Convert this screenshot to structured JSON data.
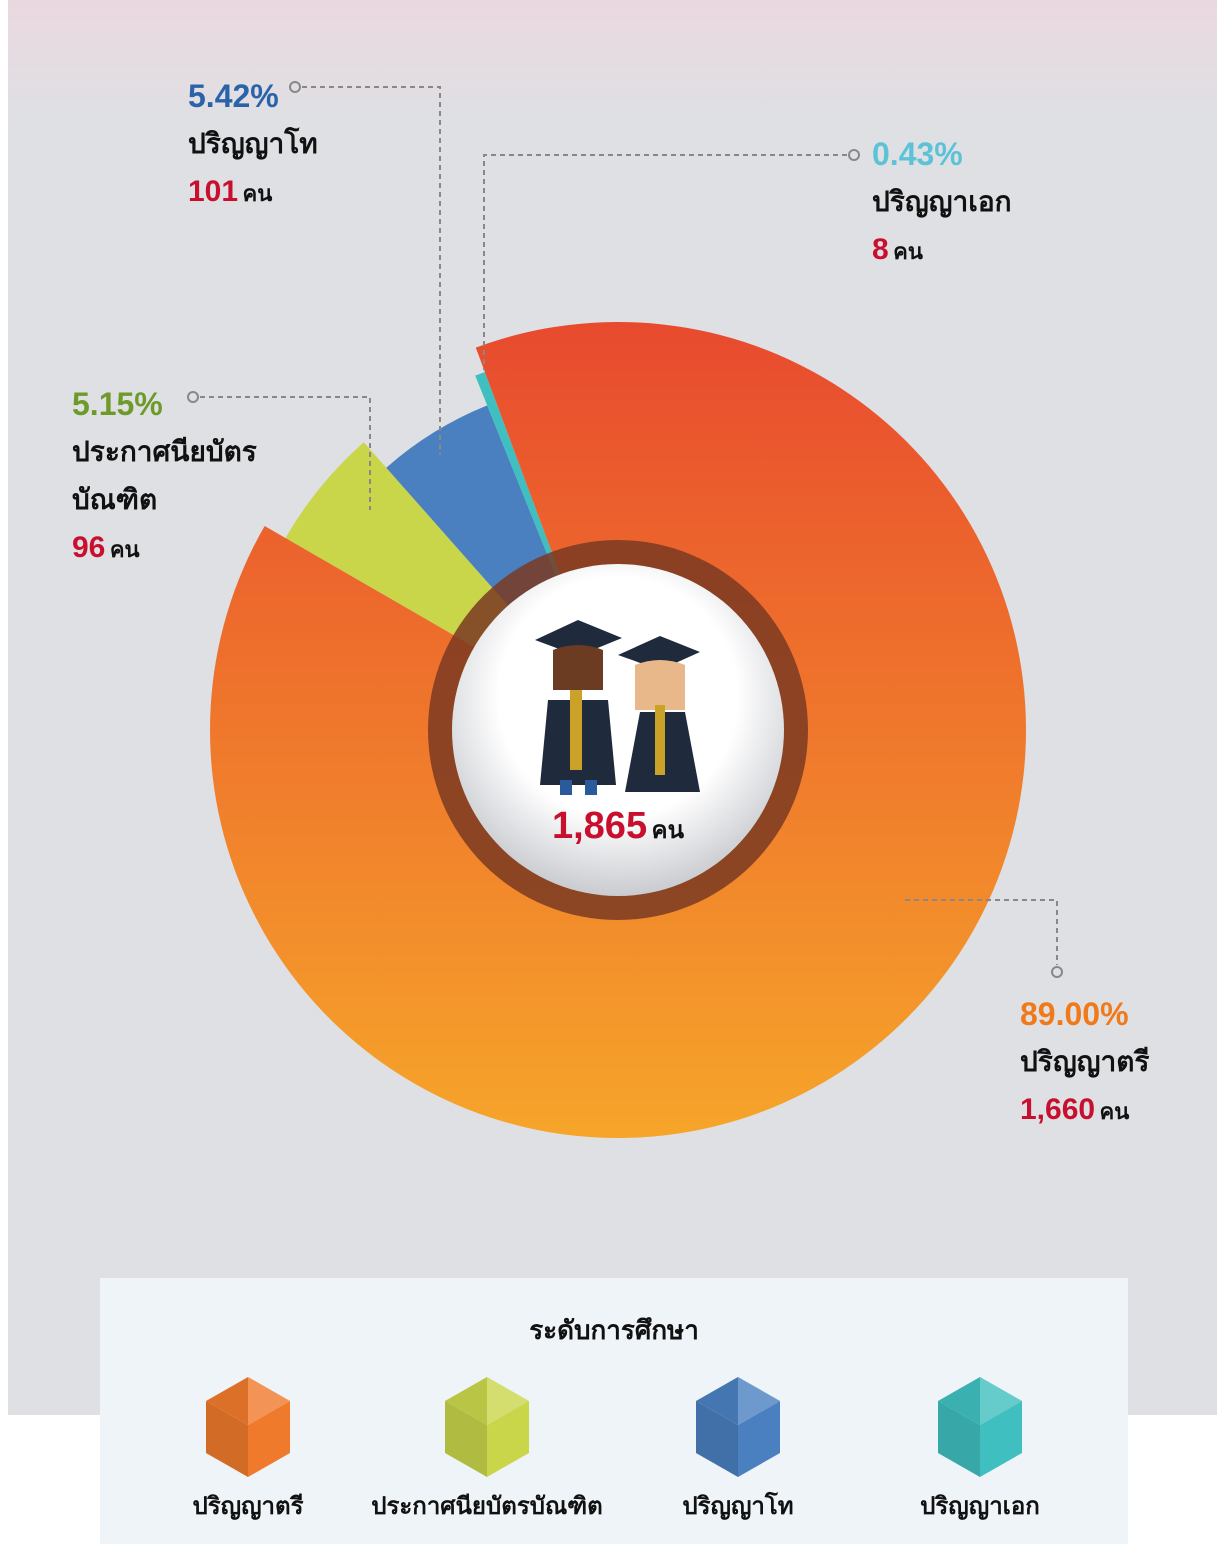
{
  "chart_data": {
    "type": "pie",
    "categories": [
      "ปริญญาตรี",
      "ประกาศนียบัตรบัณฑิต",
      "ปริญญาโท",
      "ปริญญาเอก"
    ],
    "values": [
      89.0,
      5.15,
      5.42,
      0.43
    ],
    "value_labels": [
      "89.00%",
      "5.15%",
      "5.42%",
      "0.43%"
    ],
    "counts": [
      1660,
      96,
      101,
      8
    ],
    "count_labels": [
      "1,660",
      "96",
      "101",
      "8"
    ],
    "unit": "คน",
    "total": 1865,
    "total_label": "1,865",
    "colors": [
      "#f07a2c",
      "#c9d64a",
      "#4a80c0",
      "#3fbfbf"
    ],
    "label_colors": [
      "#f07a1a",
      "#6e9a2a",
      "#2a63a8",
      "#5cc3d6"
    ],
    "legend_title": "ระดับการศึกษา"
  }
}
